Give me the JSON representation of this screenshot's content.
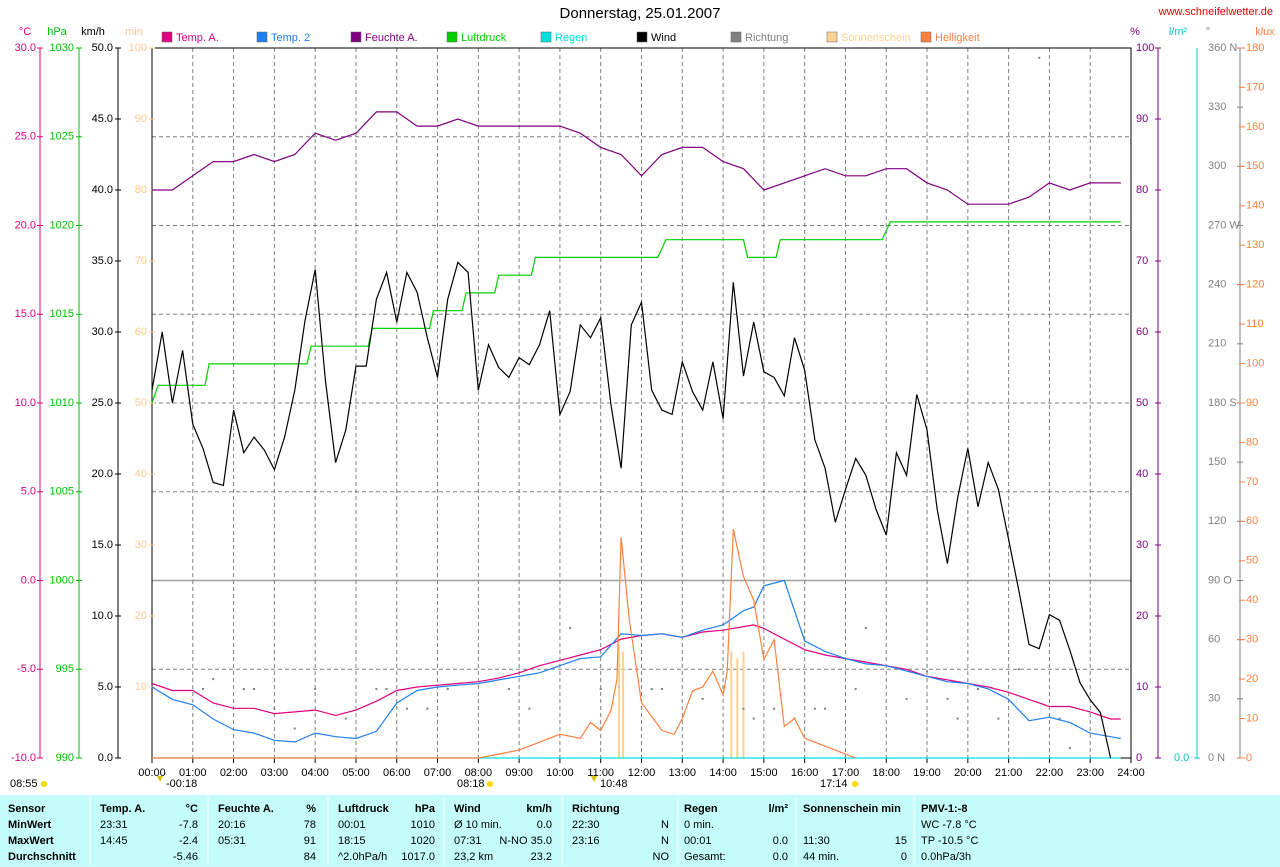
{
  "chart_data": {
    "type": "line",
    "title": "Donnerstag, 25.01.2007",
    "source": "www.schneifelwetter.de",
    "xlim": [
      0,
      24
    ],
    "xticks": [
      {
        "value": 0,
        "label": "00:00"
      },
      {
        "value": 1,
        "label": "01:00"
      },
      {
        "value": 2,
        "label": "02:00"
      },
      {
        "value": 3,
        "label": "03:00"
      },
      {
        "value": 4,
        "label": "04:00"
      },
      {
        "value": 5,
        "label": "05:00"
      },
      {
        "value": 6,
        "label": "06:00"
      },
      {
        "value": 7,
        "label": "07:00"
      },
      {
        "value": 8,
        "label": "08:00"
      },
      {
        "value": 9,
        "label": "09:00"
      },
      {
        "value": 10,
        "label": "10:00"
      },
      {
        "value": 11,
        "label": "11:00"
      },
      {
        "value": 12,
        "label": "12:00"
      },
      {
        "value": 13,
        "label": "13:00"
      },
      {
        "value": 14,
        "label": "14:00"
      },
      {
        "value": 15,
        "label": "15:00"
      },
      {
        "value": 16,
        "label": "16:00"
      },
      {
        "value": 17,
        "label": "17:00"
      },
      {
        "value": 18,
        "label": "18:00"
      },
      {
        "value": 19,
        "label": "19:00"
      },
      {
        "value": 20,
        "label": "20:00"
      },
      {
        "value": 21,
        "label": "21:00"
      },
      {
        "value": 22,
        "label": "22:00"
      },
      {
        "value": 23,
        "label": "23:00"
      },
      {
        "value": 24,
        "label": "24:00"
      }
    ],
    "grid": true,
    "axes": {
      "c": {
        "title": "°C",
        "color": "#e0007f",
        "lim": [
          -10,
          30
        ],
        "grid": true,
        "ticks": [
          {
            "value": 30,
            "label": "30.0"
          },
          {
            "value": 25,
            "label": "25.0"
          },
          {
            "value": 20,
            "label": "20.0"
          },
          {
            "value": 15,
            "label": "15.0"
          },
          {
            "value": 10,
            "label": "10.0"
          },
          {
            "value": 5,
            "label": "5.0"
          },
          {
            "value": 0,
            "label": "0.0"
          },
          {
            "value": -5,
            "label": "-5.0"
          },
          {
            "value": -10,
            "label": "-10.0"
          }
        ]
      },
      "hpa": {
        "title": "hPa",
        "color": "#00c000",
        "lim": [
          990,
          1030
        ],
        "ticks": [
          1030,
          1025,
          1020,
          1015,
          1010,
          1005,
          1000,
          995,
          990
        ]
      },
      "kmh": {
        "title": "km/h",
        "color": "#000000",
        "lim": [
          0,
          50
        ],
        "ticks": [
          {
            "value": 50,
            "label": "50.0"
          },
          {
            "value": 45,
            "label": "45.0"
          },
          {
            "value": 40,
            "label": "40.0"
          },
          {
            "value": 35,
            "label": "35.0"
          },
          {
            "value": 30,
            "label": "30.0"
          },
          {
            "value": 25,
            "label": "25.0"
          },
          {
            "value": 20,
            "label": "20.0"
          },
          {
            "value": 15,
            "label": "15.0"
          },
          {
            "value": 10,
            "label": "10.0"
          },
          {
            "value": 5,
            "label": "5.0"
          },
          {
            "value": 0,
            "label": "0.0"
          }
        ]
      },
      "min": {
        "title": "min",
        "color": "#ffc890",
        "lim": [
          0,
          100
        ],
        "ticks": [
          100,
          90,
          80,
          70,
          60,
          50,
          40,
          30,
          20,
          10
        ]
      },
      "pct": {
        "title": "%",
        "color": "#800080",
        "lim": [
          0,
          100
        ],
        "ticks": [
          100,
          90,
          80,
          70,
          60,
          50,
          40,
          30,
          20,
          10,
          0
        ]
      },
      "lm2": {
        "title": "l/m²",
        "color": "#00c8c8",
        "ticks": [
          {
            "value": 0,
            "label": "0.0"
          }
        ]
      },
      "deg": {
        "title": "°",
        "color": "#808080",
        "lim": [
          0,
          360
        ],
        "ticks": [
          {
            "value": 360,
            "label": "360 N"
          },
          {
            "value": 330,
            "label": "330"
          },
          {
            "value": 300,
            "label": "300"
          },
          {
            "value": 270,
            "label": "270 W"
          },
          {
            "value": 240,
            "label": "240"
          },
          {
            "value": 210,
            "label": "210"
          },
          {
            "value": 180,
            "label": "180 S"
          },
          {
            "value": 150,
            "label": "150"
          },
          {
            "value": 120,
            "label": "120"
          },
          {
            "value": 90,
            "label": "90 O"
          },
          {
            "value": 60,
            "label": "60"
          },
          {
            "value": 30,
            "label": "30"
          },
          {
            "value": 0,
            "label": "0 N"
          }
        ]
      },
      "klux": {
        "title": "klux",
        "color": "#ff8040",
        "lim": [
          0,
          180
        ],
        "ticks": [
          180,
          170,
          160,
          150,
          140,
          130,
          120,
          110,
          100,
          90,
          80,
          70,
          60,
          50,
          40,
          30,
          20,
          10,
          0
        ]
      }
    },
    "series": [
      {
        "name": "Temp. A.",
        "color": "#e0007f",
        "axis": "c",
        "kind": "line",
        "x": [
          0,
          0.5,
          1,
          1.5,
          2,
          2.5,
          3,
          3.5,
          4,
          4.5,
          5,
          5.5,
          6,
          6.5,
          7,
          7.5,
          8,
          8.5,
          9,
          9.5,
          10,
          10.5,
          11,
          11.5,
          12,
          12.5,
          13,
          13.5,
          14,
          14.5,
          14.75,
          15,
          15.5,
          16,
          16.5,
          17,
          17.5,
          18,
          18.5,
          19,
          19.5,
          20,
          20.5,
          21,
          21.5,
          22,
          22.5,
          23,
          23.5,
          23.75
        ],
        "values": [
          -5.8,
          -6.2,
          -6.2,
          -6.9,
          -7.2,
          -7.2,
          -7.5,
          -7.4,
          -7.3,
          -7.6,
          -7.3,
          -6.8,
          -6.2,
          -6.0,
          -5.9,
          -5.8,
          -5.7,
          -5.5,
          -5.2,
          -4.8,
          -4.5,
          -4.2,
          -3.9,
          -3.3,
          -3.1,
          -3.0,
          -3.2,
          -2.9,
          -2.8,
          -2.6,
          -2.5,
          -2.7,
          -3.3,
          -3.9,
          -4.2,
          -4.4,
          -4.6,
          -4.8,
          -5.0,
          -5.4,
          -5.6,
          -5.8,
          -6.0,
          -6.3,
          -6.7,
          -7.1,
          -7.1,
          -7.4,
          -7.8,
          -7.8
        ]
      },
      {
        "name": "Temp. 2",
        "color": "#2080f0",
        "axis": "c",
        "kind": "line",
        "x": [
          0,
          0.5,
          1,
          1.5,
          2,
          2.5,
          3,
          3.5,
          4,
          4.5,
          5,
          5.5,
          6,
          6.5,
          7,
          7.5,
          8,
          8.5,
          9,
          9.5,
          10,
          10.5,
          11,
          11.5,
          12,
          12.5,
          13,
          13.5,
          14,
          14.5,
          14.75,
          15,
          15.5,
          16,
          16.5,
          17,
          17.5,
          18,
          18.5,
          19,
          19.5,
          20,
          20.5,
          21,
          21.5,
          22,
          22.5,
          23,
          23.5,
          23.75
        ],
        "values": [
          -6.0,
          -6.7,
          -7.0,
          -7.8,
          -8.4,
          -8.6,
          -9.0,
          -9.1,
          -8.6,
          -8.8,
          -8.9,
          -8.5,
          -6.9,
          -6.2,
          -6.0,
          -5.9,
          -5.8,
          -5.6,
          -5.4,
          -5.2,
          -4.8,
          -4.4,
          -4.3,
          -3.0,
          -3.1,
          -3.0,
          -3.2,
          -2.8,
          -2.5,
          -1.7,
          -1.5,
          -0.3,
          0.0,
          -3.4,
          -4.0,
          -4.4,
          -4.7,
          -4.8,
          -5.1,
          -5.4,
          -5.7,
          -5.8,
          -6.1,
          -6.7,
          -7.9,
          -7.7,
          -8.0,
          -8.6,
          -8.8,
          -8.9
        ]
      },
      {
        "name": "Feuchte A.",
        "color": "#800080",
        "axis": "pct",
        "kind": "line",
        "x": [
          0,
          0.5,
          1,
          1.5,
          2,
          2.5,
          3,
          3.5,
          4,
          4.5,
          5,
          5.5,
          6,
          6.5,
          7,
          7.5,
          8,
          8.5,
          9,
          9.5,
          10,
          10.5,
          11,
          11.5,
          12,
          12.5,
          13,
          13.5,
          14,
          14.5,
          15,
          15.5,
          16,
          16.5,
          17,
          17.5,
          18,
          18.5,
          19,
          19.5,
          20,
          20.5,
          21,
          21.5,
          22,
          22.5,
          23,
          23.5,
          23.75
        ],
        "values": [
          80,
          80,
          82,
          84,
          84,
          85,
          84,
          85,
          88,
          87,
          88,
          91,
          91,
          89,
          89,
          90,
          89,
          89,
          89,
          89,
          89,
          88,
          86,
          85,
          82,
          85,
          86,
          86,
          84,
          83,
          80,
          81,
          82,
          83,
          82,
          82,
          83,
          83,
          81,
          80,
          78,
          78,
          78,
          79,
          81,
          80,
          81,
          81,
          81
        ]
      },
      {
        "name": "Luftdruck",
        "color": "#00d000",
        "axis": "hpa",
        "kind": "line",
        "x": [
          0,
          0.15,
          0.25,
          1.3,
          1.4,
          3.8,
          3.9,
          5.3,
          5.4,
          6.8,
          6.9,
          7.6,
          7.7,
          8.4,
          8.5,
          9.3,
          9.4,
          12.4,
          12.6,
          14.5,
          14.6,
          15.3,
          15.4,
          17.9,
          18.1,
          23.75
        ],
        "values": [
          1010,
          1011,
          1011,
          1011,
          1012.2,
          1012.2,
          1013.2,
          1013.2,
          1014.2,
          1014.2,
          1015.2,
          1015.2,
          1016.2,
          1016.2,
          1017.2,
          1017.2,
          1018.2,
          1018.2,
          1019.2,
          1019.2,
          1018.2,
          1018.2,
          1019.2,
          1019.2,
          1020.2,
          1020.2
        ]
      },
      {
        "name": "Regen",
        "color": "#00e0e0",
        "axis": "lm2",
        "kind": "line",
        "x": [
          0,
          23.75
        ],
        "values": [
          0,
          0
        ]
      },
      {
        "name": "Wind",
        "color": "#000000",
        "axis": "kmh",
        "kind": "line",
        "x": [
          0,
          0.25,
          0.5,
          0.75,
          1,
          1.25,
          1.5,
          1.75,
          2,
          2.25,
          2.5,
          2.75,
          3,
          3.25,
          3.5,
          3.75,
          4,
          4.25,
          4.5,
          4.75,
          5,
          5.25,
          5.5,
          5.75,
          6,
          6.25,
          6.5,
          6.75,
          7,
          7.25,
          7.5,
          7.75,
          8,
          8.25,
          8.5,
          8.75,
          9,
          9.25,
          9.5,
          9.75,
          10,
          10.25,
          10.5,
          10.75,
          11,
          11.25,
          11.5,
          11.75,
          12,
          12.25,
          12.5,
          12.75,
          13,
          13.25,
          13.5,
          13.75,
          14,
          14.25,
          14.5,
          14.75,
          15,
          15.25,
          15.5,
          15.75,
          16,
          16.25,
          16.5,
          16.75,
          17,
          17.25,
          17.5,
          17.75,
          18,
          18.25,
          18.5,
          18.75,
          19,
          19.25,
          19.5,
          19.75,
          20,
          20.25,
          20.5,
          20.75,
          21,
          21.25,
          21.5,
          21.75,
          22,
          22.25,
          22.5,
          22.75,
          23,
          23.25,
          23.5
        ],
        "values": [
          25.9,
          30.0,
          25.0,
          28.7,
          23.5,
          21.8,
          19.4,
          19.2,
          24.5,
          21.5,
          22.6,
          21.7,
          20.3,
          22.6,
          25.9,
          30.8,
          34.4,
          26.6,
          20.8,
          23.1,
          27.6,
          27.6,
          32.3,
          34.2,
          30.7,
          34.2,
          32.8,
          29.6,
          26.8,
          32.3,
          34.9,
          34.2,
          25.9,
          29.1,
          27.5,
          26.8,
          28.2,
          27.7,
          29.1,
          31.5,
          24.2,
          25.8,
          30.5,
          29.6,
          31.0,
          24.9,
          20.4,
          30.5,
          32.1,
          25.9,
          24.5,
          24.2,
          27.9,
          25.8,
          24.5,
          27.9,
          23.9,
          33.5,
          26.9,
          30.7,
          27.2,
          26.8,
          25.5,
          29.6,
          27.3,
          22.4,
          20.4,
          16.6,
          18.9,
          21.1,
          19.9,
          17.5,
          15.7,
          21.5,
          19.9,
          25.6,
          23.1,
          17.5,
          13.7,
          18.3,
          21.8,
          17.7,
          20.8,
          18.9,
          15.4,
          11.8,
          8.0,
          7.7,
          10.1,
          9.7,
          7.6,
          5.3,
          4.1,
          3.2,
          0
        ]
      },
      {
        "name": "Richtung",
        "color": "#808080",
        "axis": "deg",
        "kind": "scatter",
        "x": [
          1.25,
          1.5,
          2.25,
          2.5,
          3.0,
          3.5,
          4.0,
          4.75,
          5.5,
          5.75,
          6.25,
          6.75,
          7.25,
          8.75,
          9.25,
          10.25,
          11.0,
          12.25,
          12.5,
          13.5,
          14.5,
          14.75,
          15.25,
          15.75,
          16.25,
          16.5,
          17.25,
          17.5,
          18.5,
          19.0,
          19.5,
          19.75,
          20.25,
          20.75,
          21.25,
          21.75,
          22.25,
          22.5
        ],
        "values": [
          35,
          40,
          35,
          35,
          25,
          15,
          35,
          20,
          35,
          35,
          25,
          25,
          35,
          35,
          25,
          66,
          35,
          35,
          35,
          30,
          25,
          20,
          25,
          20,
          25,
          25,
          35,
          66,
          30,
          44,
          30,
          20,
          35,
          20,
          45,
          355,
          20,
          5
        ]
      },
      {
        "name": "Sonnenschein",
        "color": "#ffd090",
        "axis": "min",
        "kind": "bar",
        "x": [
          11.45,
          11.55,
          14.2,
          14.35,
          14.5
        ],
        "values": [
          16,
          15,
          15,
          14,
          15
        ]
      },
      {
        "name": "Helligkeit",
        "color": "#ff8040",
        "axis": "klux",
        "kind": "line",
        "x": [
          0,
          8,
          8.5,
          9,
          9.5,
          10,
          10.5,
          10.75,
          11,
          11.25,
          11.4,
          11.5,
          11.7,
          12,
          12.5,
          12.8,
          13,
          13.25,
          13.5,
          13.75,
          14,
          14.1,
          14.25,
          14.5,
          14.75,
          15,
          15.25,
          15.5,
          15.75,
          16,
          16.5,
          17,
          17.25
        ],
        "values": [
          0,
          0,
          1,
          2,
          4,
          6,
          5,
          9,
          7,
          12,
          20,
          56,
          35,
          14,
          7,
          6,
          10,
          17,
          18,
          22,
          16,
          22,
          58,
          46,
          40,
          25,
          30,
          8,
          10,
          5,
          3,
          1,
          0
        ]
      }
    ],
    "annotations": [
      "08:55",
      "-00:18",
      "08:18",
      "10:48",
      "17:14"
    ]
  },
  "table": {
    "header": [
      "Sensor",
      "Temp. A.",
      "°C",
      "Feuchte A.",
      "%",
      "Luftdruck",
      "hPa",
      "Wind",
      "km/h",
      "Richtung",
      null,
      "Regen",
      "l/m²",
      "Sonnenschein min",
      null,
      "PMV-1:-8"
    ],
    "rows": [
      [
        "MinWert",
        "23:31",
        "-7.8",
        "20:16",
        "78",
        "00:01",
        "1010",
        "Ø 10 min.",
        "0.0",
        "22:30",
        "N",
        "0 min.",
        null,
        null,
        null,
        "WC -7.8 °C"
      ],
      [
        "MaxWert",
        "14:45",
        "-2.4",
        "05:31",
        "91",
        "18:15",
        "1020",
        "07:31",
        "N-NO 35.0",
        "23:16",
        "N",
        "00:01",
        "0.0",
        "11:30",
        "15",
        "TP -10.5 °C"
      ],
      [
        "Durchschnitt",
        null,
        "-5.46",
        null,
        "84",
        "^2.0hPa/h",
        "1017.0",
        "23,2 km",
        "23.2",
        null,
        "NO",
        "Gesamt:",
        "0.0",
        "44 min.",
        "0",
        "0.0hPa/3h"
      ]
    ]
  }
}
